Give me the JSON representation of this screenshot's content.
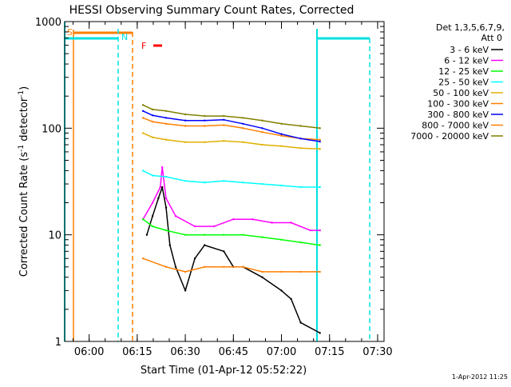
{
  "chart_data": {
    "type": "line",
    "title": "HESSI Observing Summary Count Rates, Corrected",
    "xlabel": "Start Time (01-Apr-12 05:52:22)",
    "ylabel": "Corrected Count Rate (s",
    "ylabel_sup1": "-1",
    "ylabel_mid": " detector",
    "ylabel_sup2": "-1",
    "ylabel_end": ")",
    "y_scale": "log",
    "ylim": [
      1,
      1000
    ],
    "xlim": [
      "05:52:22",
      "07:32:00"
    ],
    "x_ticks": [
      "06:00",
      "06:15",
      "06:30",
      "06:45",
      "07:00",
      "07:15",
      "07:30"
    ],
    "y_ticks": [
      "1",
      "10",
      "100",
      "1000"
    ],
    "legend_header": [
      "Det 1,3,5,6,7,9,",
      "Att 0"
    ],
    "legend_position": "right",
    "series": [
      {
        "name": "3 - 6 keV",
        "color": "#000000",
        "values": [
          [
            6.28,
            "-"
          ],
          [
            6.3,
            10
          ],
          [
            6.33,
            15
          ],
          [
            6.36,
            22
          ],
          [
            6.38,
            28
          ],
          [
            6.4,
            18
          ],
          [
            6.42,
            8
          ],
          [
            6.45,
            5
          ],
          [
            6.5,
            3
          ],
          [
            6.55,
            6
          ],
          [
            6.6,
            8
          ],
          [
            6.7,
            7
          ],
          [
            6.75,
            5
          ],
          [
            6.8,
            5
          ],
          [
            6.9,
            4
          ],
          [
            7.0,
            3
          ],
          [
            7.05,
            2.5
          ],
          [
            7.1,
            1.5
          ],
          [
            7.2,
            1.2
          ]
        ]
      },
      {
        "name": "6 - 12 keV",
        "color": "#ff00ff",
        "values": [
          [
            6.28,
            14
          ],
          [
            6.33,
            20
          ],
          [
            6.37,
            28
          ],
          [
            6.38,
            43
          ],
          [
            6.4,
            22
          ],
          [
            6.45,
            15
          ],
          [
            6.55,
            12
          ],
          [
            6.65,
            12
          ],
          [
            6.75,
            14
          ],
          [
            6.85,
            14
          ],
          [
            6.95,
            13
          ],
          [
            7.05,
            13
          ],
          [
            7.15,
            11
          ],
          [
            7.2,
            11
          ]
        ]
      },
      {
        "name": "12 - 25 keV",
        "color": "#00ff00",
        "values": [
          [
            6.28,
            14
          ],
          [
            6.33,
            12
          ],
          [
            6.4,
            11
          ],
          [
            6.5,
            10
          ],
          [
            6.6,
            10
          ],
          [
            6.7,
            10
          ],
          [
            6.8,
            10
          ],
          [
            6.9,
            9.5
          ],
          [
            7.0,
            9
          ],
          [
            7.1,
            8.5
          ],
          [
            7.2,
            8
          ]
        ]
      },
      {
        "name": "25 - 50 keV",
        "color": "#00ffff",
        "values": [
          [
            6.28,
            40
          ],
          [
            6.33,
            36
          ],
          [
            6.4,
            35
          ],
          [
            6.5,
            32
          ],
          [
            6.6,
            31
          ],
          [
            6.7,
            32
          ],
          [
            6.8,
            31
          ],
          [
            6.9,
            30
          ],
          [
            7.0,
            29
          ],
          [
            7.1,
            28
          ],
          [
            7.2,
            28
          ]
        ]
      },
      {
        "name": "50 - 100 keV",
        "color": "#e0b000",
        "values": [
          [
            6.28,
            90
          ],
          [
            6.33,
            82
          ],
          [
            6.4,
            78
          ],
          [
            6.5,
            74
          ],
          [
            6.6,
            74
          ],
          [
            6.7,
            76
          ],
          [
            6.8,
            74
          ],
          [
            6.9,
            70
          ],
          [
            7.0,
            68
          ],
          [
            7.1,
            65
          ],
          [
            7.2,
            64
          ]
        ]
      },
      {
        "name": "100 - 300 keV",
        "color": "#ff7f00",
        "values": [
          [
            6.28,
            125
          ],
          [
            6.33,
            115
          ],
          [
            6.4,
            110
          ],
          [
            6.5,
            105
          ],
          [
            6.6,
            105
          ],
          [
            6.7,
            107
          ],
          [
            6.8,
            100
          ],
          [
            6.9,
            92
          ],
          [
            7.0,
            85
          ],
          [
            7.1,
            80
          ],
          [
            7.2,
            78
          ]
        ]
      },
      {
        "name": "300 - 800 keV",
        "color": "#0000ff",
        "values": [
          [
            6.28,
            145
          ],
          [
            6.33,
            132
          ],
          [
            6.4,
            125
          ],
          [
            6.5,
            118
          ],
          [
            6.6,
            118
          ],
          [
            6.7,
            120
          ],
          [
            6.8,
            110
          ],
          [
            6.9,
            100
          ],
          [
            7.0,
            88
          ],
          [
            7.1,
            80
          ],
          [
            7.2,
            75
          ]
        ]
      },
      {
        "name": "800 - 7000 keV",
        "color": "#ff7f00",
        "values": [
          [
            6.28,
            6
          ],
          [
            6.4,
            5
          ],
          [
            6.5,
            4.5
          ],
          [
            6.6,
            5
          ],
          [
            6.7,
            5
          ],
          [
            6.8,
            5
          ],
          [
            6.9,
            4.5
          ],
          [
            7.0,
            4.5
          ],
          [
            7.1,
            4.5
          ],
          [
            7.2,
            4.5
          ]
        ]
      },
      {
        "name": "7000 - 20000 keV",
        "color": "#808000",
        "values": [
          [
            6.28,
            165
          ],
          [
            6.33,
            150
          ],
          [
            6.4,
            145
          ],
          [
            6.5,
            135
          ],
          [
            6.6,
            130
          ],
          [
            6.7,
            130
          ],
          [
            6.8,
            125
          ],
          [
            6.9,
            118
          ],
          [
            7.0,
            110
          ],
          [
            7.1,
            105
          ],
          [
            7.2,
            100
          ]
        ]
      }
    ],
    "flags": {
      "saa_label": "S",
      "night_label": "N",
      "flare_label": "F",
      "flare_color": "#ff0000",
      "night_color": "#00e0e0",
      "saa_color": "#ff7f00"
    }
  },
  "footer_timestamp": "1-Apr-2012 11:25"
}
